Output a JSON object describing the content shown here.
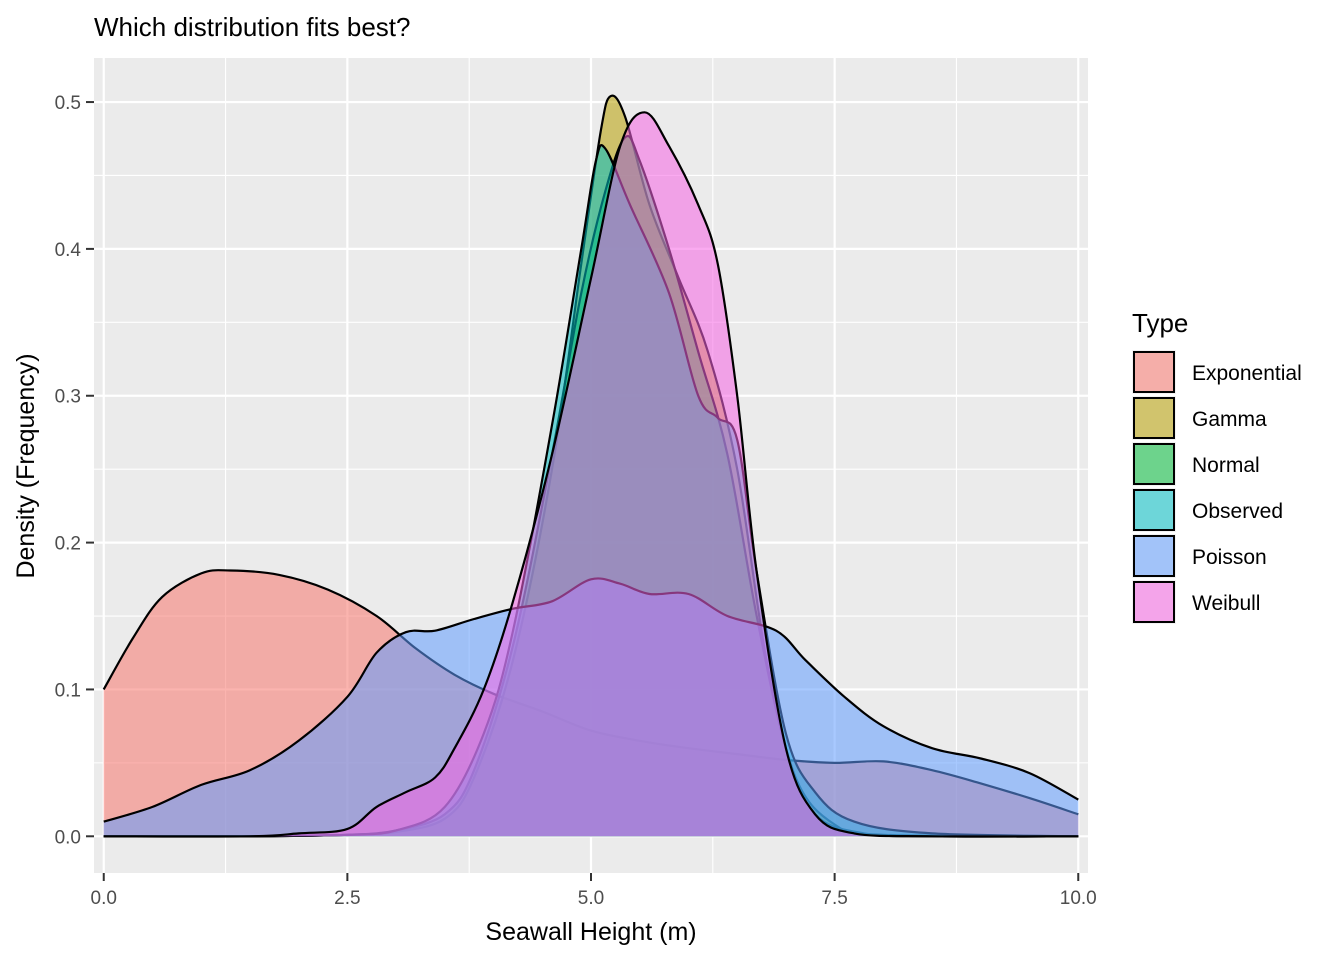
{
  "chart_data": {
    "type": "area",
    "subtype": "density",
    "title": "Which distribution fits best?",
    "xlabel": "Seawall Height (m)",
    "ylabel": "Density (Frequency)",
    "xlim": [
      -0.1,
      10.1
    ],
    "ylim": [
      -0.025,
      0.53
    ],
    "x_ticks": [
      0,
      2.5,
      5,
      7.5,
      10
    ],
    "x_tick_labels": [
      "0.0",
      "2.5",
      "5.0",
      "7.5",
      "10.0"
    ],
    "y_ticks": [
      0,
      0.1,
      0.2,
      0.3,
      0.4,
      0.5
    ],
    "y_tick_labels": [
      "0.0",
      "0.1",
      "0.2",
      "0.3",
      "0.4",
      "0.5"
    ],
    "grid": true,
    "legend": {
      "title": "Type",
      "position": "right"
    },
    "series": [
      {
        "name": "Exponential",
        "color": "#F8766D",
        "points": [
          [
            0,
            0.1
          ],
          [
            0.3,
            0.135
          ],
          [
            0.6,
            0.163
          ],
          [
            1.0,
            0.179
          ],
          [
            1.3,
            0.181
          ],
          [
            1.8,
            0.178
          ],
          [
            2.3,
            0.168
          ],
          [
            2.8,
            0.15
          ],
          [
            3.2,
            0.128
          ],
          [
            3.6,
            0.11
          ],
          [
            4.0,
            0.097
          ],
          [
            4.5,
            0.085
          ],
          [
            5.0,
            0.072
          ],
          [
            5.5,
            0.065
          ],
          [
            6.0,
            0.06
          ],
          [
            6.5,
            0.056
          ],
          [
            7.0,
            0.052
          ],
          [
            7.5,
            0.05
          ],
          [
            8.0,
            0.051
          ],
          [
            8.5,
            0.045
          ],
          [
            9.0,
            0.036
          ],
          [
            9.5,
            0.026
          ],
          [
            10.0,
            0.015
          ]
        ]
      },
      {
        "name": "Gamma",
        "color": "#B79F00",
        "points": [
          [
            0,
            0
          ],
          [
            1.5,
            0
          ],
          [
            2.5,
            0.001
          ],
          [
            3.0,
            0.003
          ],
          [
            3.5,
            0.012
          ],
          [
            3.8,
            0.04
          ],
          [
            4.2,
            0.12
          ],
          [
            4.6,
            0.25
          ],
          [
            4.9,
            0.39
          ],
          [
            5.1,
            0.48
          ],
          [
            5.2,
            0.504
          ],
          [
            5.35,
            0.49
          ],
          [
            5.6,
            0.43
          ],
          [
            5.9,
            0.38
          ],
          [
            6.2,
            0.33
          ],
          [
            6.5,
            0.25
          ],
          [
            6.8,
            0.12
          ],
          [
            7.1,
            0.04
          ],
          [
            7.5,
            0.008
          ],
          [
            8.0,
            0.001
          ],
          [
            10.0,
            0
          ]
        ]
      },
      {
        "name": "Normal",
        "color": "#00BA38",
        "points": [
          [
            0,
            0
          ],
          [
            1.5,
            0
          ],
          [
            2.5,
            0.001
          ],
          [
            3.0,
            0.004
          ],
          [
            3.5,
            0.015
          ],
          [
            3.8,
            0.045
          ],
          [
            4.2,
            0.13
          ],
          [
            4.6,
            0.26
          ],
          [
            4.9,
            0.37
          ],
          [
            5.15,
            0.44
          ],
          [
            5.35,
            0.476
          ],
          [
            5.5,
            0.46
          ],
          [
            5.8,
            0.4
          ],
          [
            6.1,
            0.33
          ],
          [
            6.4,
            0.26
          ],
          [
            6.7,
            0.15
          ],
          [
            7.0,
            0.06
          ],
          [
            7.3,
            0.015
          ],
          [
            7.8,
            0.002
          ],
          [
            8.5,
            0
          ],
          [
            10.0,
            0
          ]
        ]
      },
      {
        "name": "Observed",
        "color": "#00BFC4",
        "points": [
          [
            0,
            0
          ],
          [
            1.5,
            0
          ],
          [
            2.5,
            0.001
          ],
          [
            3.0,
            0.004
          ],
          [
            3.5,
            0.02
          ],
          [
            3.9,
            0.07
          ],
          [
            4.2,
            0.14
          ],
          [
            4.6,
            0.28
          ],
          [
            4.9,
            0.4
          ],
          [
            5.05,
            0.46
          ],
          [
            5.15,
            0.468
          ],
          [
            5.4,
            0.43
          ],
          [
            5.8,
            0.37
          ],
          [
            6.1,
            0.3
          ],
          [
            6.3,
            0.285
          ],
          [
            6.5,
            0.27
          ],
          [
            6.7,
            0.18
          ],
          [
            7.0,
            0.07
          ],
          [
            7.3,
            0.03
          ],
          [
            7.7,
            0.01
          ],
          [
            8.5,
            0.002
          ],
          [
            10.0,
            0
          ]
        ]
      },
      {
        "name": "Poisson",
        "color": "#619CFF",
        "points": [
          [
            0,
            0.01
          ],
          [
            0.5,
            0.02
          ],
          [
            1.0,
            0.035
          ],
          [
            1.5,
            0.045
          ],
          [
            2.0,
            0.065
          ],
          [
            2.5,
            0.095
          ],
          [
            2.8,
            0.125
          ],
          [
            3.1,
            0.139
          ],
          [
            3.4,
            0.14
          ],
          [
            3.8,
            0.148
          ],
          [
            4.2,
            0.155
          ],
          [
            4.6,
            0.16
          ],
          [
            5.0,
            0.175
          ],
          [
            5.3,
            0.172
          ],
          [
            5.6,
            0.165
          ],
          [
            6.0,
            0.165
          ],
          [
            6.4,
            0.15
          ],
          [
            6.9,
            0.14
          ],
          [
            7.2,
            0.12
          ],
          [
            7.6,
            0.095
          ],
          [
            8.0,
            0.075
          ],
          [
            8.5,
            0.06
          ],
          [
            9.0,
            0.053
          ],
          [
            9.5,
            0.043
          ],
          [
            10.0,
            0.025
          ]
        ]
      },
      {
        "name": "Weibull",
        "color": "#F564E3",
        "points": [
          [
            0,
            0
          ],
          [
            1.5,
            0
          ],
          [
            2.0,
            0.002
          ],
          [
            2.5,
            0.005
          ],
          [
            2.8,
            0.02
          ],
          [
            3.1,
            0.03
          ],
          [
            3.4,
            0.04
          ],
          [
            3.6,
            0.06
          ],
          [
            3.9,
            0.1
          ],
          [
            4.2,
            0.16
          ],
          [
            4.6,
            0.26
          ],
          [
            5.0,
            0.38
          ],
          [
            5.3,
            0.47
          ],
          [
            5.55,
            0.493
          ],
          [
            5.8,
            0.47
          ],
          [
            6.1,
            0.43
          ],
          [
            6.3,
            0.39
          ],
          [
            6.5,
            0.3
          ],
          [
            6.7,
            0.18
          ],
          [
            7.0,
            0.06
          ],
          [
            7.3,
            0.015
          ],
          [
            7.7,
            0.002
          ],
          [
            8.5,
            0
          ],
          [
            10.0,
            0
          ]
        ]
      }
    ]
  }
}
